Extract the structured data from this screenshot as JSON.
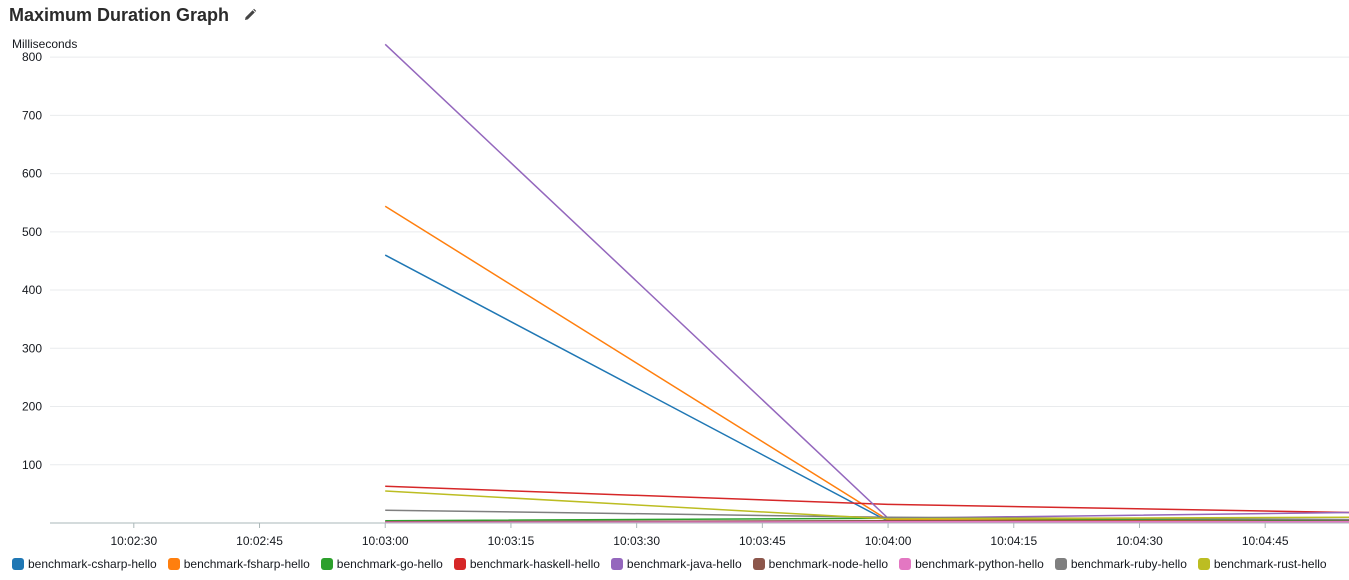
{
  "header": {
    "title": "Maximum Duration Graph",
    "edit_icon": "pencil-icon"
  },
  "chart_data": {
    "type": "line",
    "title": "Maximum Duration Graph",
    "ylabel": "Milliseconds",
    "xlabel": "",
    "ylim": [
      0,
      850
    ],
    "yticks": [
      100,
      200,
      300,
      400,
      500,
      600,
      700,
      800
    ],
    "xlim": [
      "10:02:20",
      "10:04:55"
    ],
    "xticks": [
      "10:02:30",
      "10:02:45",
      "10:03:00",
      "10:03:15",
      "10:03:30",
      "10:03:45",
      "10:04:00",
      "10:04:15",
      "10:04:30",
      "10:04:45"
    ],
    "grid": "horizontal",
    "legend": "bottom",
    "series": [
      {
        "name": "benchmark-csharp-hello",
        "color": "#1f77b4",
        "x": [
          "10:03:00",
          "10:04:00",
          "10:04:55"
        ],
        "values": [
          460,
          3,
          4
        ]
      },
      {
        "name": "benchmark-fsharp-hello",
        "color": "#ff7f0e",
        "x": [
          "10:03:00",
          "10:04:00",
          "10:04:55"
        ],
        "values": [
          544,
          5,
          5
        ]
      },
      {
        "name": "benchmark-go-hello",
        "color": "#2ca02c",
        "x": [
          "10:03:00",
          "10:04:00",
          "10:04:55"
        ],
        "values": [
          4,
          8,
          5
        ]
      },
      {
        "name": "benchmark-haskell-hello",
        "color": "#d62728",
        "x": [
          "10:03:00",
          "10:04:00",
          "10:04:55"
        ],
        "values": [
          63,
          32,
          18
        ]
      },
      {
        "name": "benchmark-java-hello",
        "color": "#9467bd",
        "x": [
          "10:03:00",
          "10:04:00",
          "10:04:55"
        ],
        "values": [
          822,
          8,
          18
        ]
      },
      {
        "name": "benchmark-node-hello",
        "color": "#8c564b",
        "x": [
          "10:03:00",
          "10:04:00",
          "10:04:55"
        ],
        "values": [
          2,
          4,
          3
        ]
      },
      {
        "name": "benchmark-python-hello",
        "color": "#e377c2",
        "x": [
          "10:03:00",
          "10:04:00",
          "10:04:55"
        ],
        "values": [
          1,
          2,
          2
        ]
      },
      {
        "name": "benchmark-ruby-hello",
        "color": "#7f7f7f",
        "x": [
          "10:03:00",
          "10:04:00",
          "10:04:55"
        ],
        "values": [
          22,
          10,
          6
        ]
      },
      {
        "name": "benchmark-rust-hello",
        "color": "#bcbd22",
        "x": [
          "10:03:00",
          "10:04:00",
          "10:04:55"
        ],
        "values": [
          55,
          7,
          10
        ]
      }
    ]
  }
}
